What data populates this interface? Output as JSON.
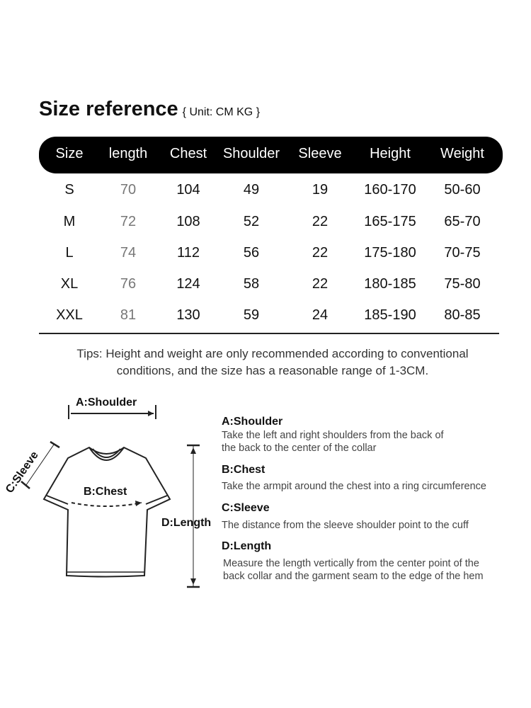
{
  "title": "Size reference",
  "unit": "{ Unit: CM KG }",
  "columns": [
    "Size",
    "length",
    "Chest",
    "Shoulder",
    "Sleeve",
    "Height",
    "Weight"
  ],
  "rows": [
    [
      "S",
      "70",
      "104",
      "49",
      "19",
      "160-170",
      "50-60"
    ],
    [
      "M",
      "72",
      "108",
      "52",
      "22",
      "165-175",
      "65-70"
    ],
    [
      "L",
      "74",
      "112",
      "56",
      "22",
      "175-180",
      "70-75"
    ],
    [
      "XL",
      "76",
      "124",
      "58",
      "22",
      "180-185",
      "75-80"
    ],
    [
      "XXL",
      "81",
      "130",
      "59",
      "24",
      "185-190",
      "80-85"
    ]
  ],
  "tips": [
    "Tips: Height and weight are only recommended according to conventional",
    "conditions, and the size has a reasonable range of 1-3CM."
  ],
  "diagram": {
    "shoulder": "A:Shoulder",
    "chest": "B:Chest",
    "sleeve": "C:Sleeve",
    "length": "D:Length"
  },
  "descriptions": [
    {
      "title": "A:Shoulder",
      "lines": [
        "Take the left and right shoulders from the back of",
        "the back to the center of the collar"
      ]
    },
    {
      "title": "B:Chest",
      "lines": [
        "Take the armpit around the chest into a ring circumference"
      ]
    },
    {
      "title": "C:Sleeve",
      "lines": [
        "The distance from the sleeve shoulder point to the cuff"
      ]
    },
    {
      "title": "D:Length",
      "lines": [
        "Measure the length vertically from the center point of the",
        "back collar and the garment seam to the edge of the hem"
      ]
    }
  ]
}
